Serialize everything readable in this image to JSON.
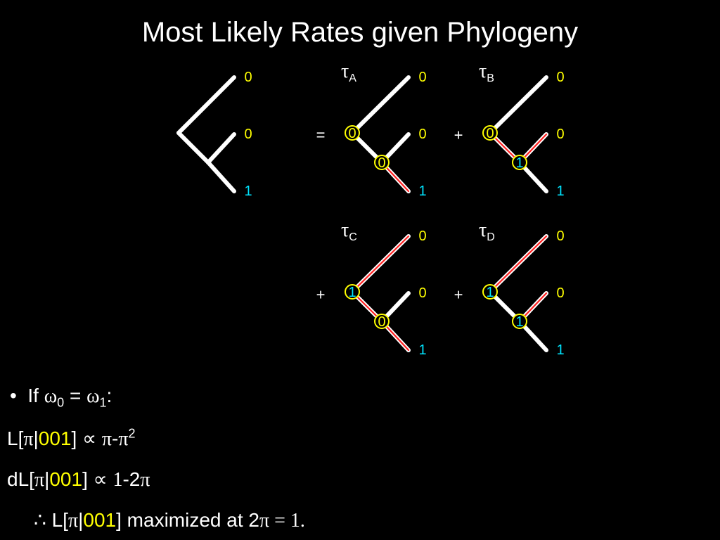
{
  "title": "Most Likely Rates given Phylogeny",
  "colors": {
    "background": "#000000",
    "branch": "#ffffff",
    "changed_branch": "#ff2020",
    "state_0": "#ffff00",
    "state_1": "#00e5ff",
    "node_ring": "#ffff00"
  },
  "diagram": {
    "operators": [
      "=",
      "+",
      "+",
      "+"
    ],
    "tree_main": {
      "leaves": [
        "0",
        "0",
        "1"
      ]
    },
    "trees": [
      {
        "label": "τ",
        "sub": "A",
        "root": "0",
        "internal": "0",
        "leaves": [
          "0",
          "0",
          "1"
        ]
      },
      {
        "label": "τ",
        "sub": "B",
        "root": "0",
        "internal": "1",
        "leaves": [
          "0",
          "0",
          "1"
        ]
      },
      {
        "label": "τ",
        "sub": "C",
        "root": "1",
        "internal": "0",
        "leaves": [
          "0",
          "0",
          "1"
        ]
      },
      {
        "label": "τ",
        "sub": "D",
        "root": "1",
        "internal": "1",
        "leaves": [
          "0",
          "0",
          "1"
        ]
      }
    ]
  },
  "text": {
    "bullet": "•",
    "line1": {
      "if": "If",
      "omega": "ω",
      "sub0": "0",
      "eq": "=",
      "sub1": "1",
      "colon": ":"
    },
    "line2": {
      "prefix": "L[",
      "pi": "π",
      "bar": "|",
      "data": "001",
      "close": "]",
      "prop": "∝",
      "pi2": "π",
      "minus": "-",
      "pi3": "π",
      "sup": "2"
    },
    "line3": {
      "prefix": "dL[",
      "pi": "π",
      "bar": "|",
      "data": "001",
      "close": "]",
      "prop": "∝",
      "one": "1",
      "rest": "-2",
      "pi2": "π"
    },
    "line4": {
      "therefore": "∴",
      "prefix": "L[",
      "pi": "π",
      "bar": "|",
      "data": "001",
      "close": "] maximized at 2",
      "pi2": "π",
      "eq": " = ",
      "one": "1",
      "dot": "."
    }
  }
}
